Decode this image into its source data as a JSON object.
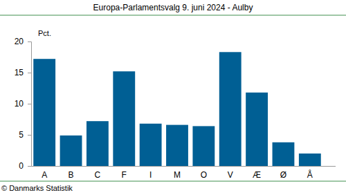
{
  "chart_data": {
    "type": "bar",
    "title": "Europa-Parlamentsvalg 9. juni 2024 - Aulby",
    "y_label": "Pct.",
    "source": "© Danmarks Statistik",
    "categories": [
      "A",
      "B",
      "C",
      "F",
      "I",
      "M",
      "O",
      "V",
      "Æ",
      "Ø",
      "Å"
    ],
    "values": [
      17.2,
      4.9,
      7.2,
      15.2,
      6.8,
      6.6,
      6.4,
      18.3,
      11.8,
      3.8,
      2.0
    ],
    "color": "#005f94",
    "ylim": [
      0,
      20
    ],
    "yticks": [
      0,
      5,
      10,
      15,
      20
    ],
    "grid": false
  }
}
